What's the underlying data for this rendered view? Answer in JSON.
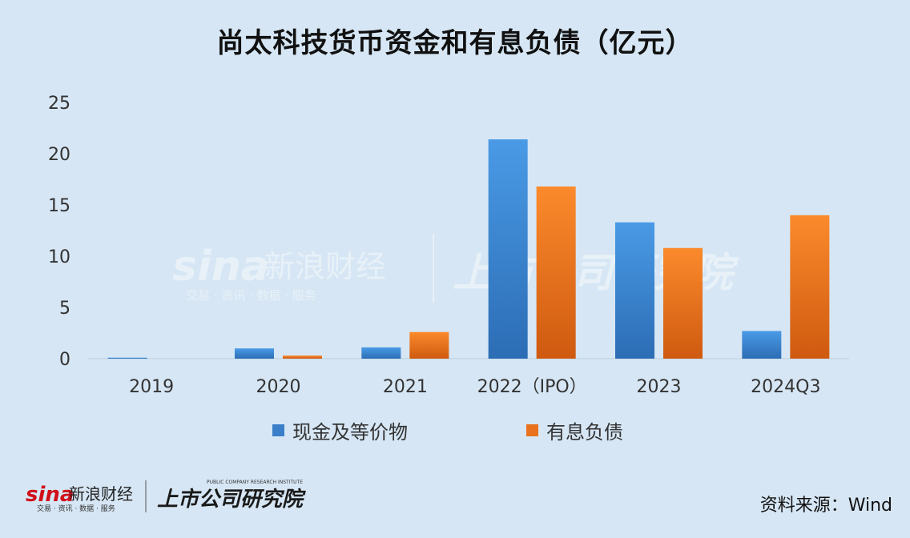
{
  "chart_data": {
    "type": "bar",
    "title": "尚太科技货币资金和有息负债（亿元）",
    "categories": [
      "2019",
      "2020",
      "2021",
      "2022（IPO）",
      "2023",
      "2024Q3"
    ],
    "series": [
      {
        "name": "现金及等价物",
        "values": [
          0.1,
          1.0,
          1.1,
          21.4,
          13.3,
          2.7
        ],
        "color": "#3a7fc8"
      },
      {
        "name": "有息负债",
        "values": [
          0.0,
          0.3,
          2.6,
          16.8,
          10.8,
          14.0
        ],
        "color": "#e8721d"
      }
    ],
    "ylim": [
      0,
      25
    ],
    "yticks": [
      0,
      5,
      10,
      15,
      20,
      25
    ],
    "grid": false,
    "legend_position": "bottom"
  },
  "source_label": "资料来源：Wind",
  "brand": {
    "sina_name": "新浪财经",
    "sina_tagline": "交易 · 资讯 · 数据 · 服务",
    "institute_name": "上市公司研究院",
    "institute_en": "PUBLIC COMPANY RESEARCH INSTITUTE"
  }
}
